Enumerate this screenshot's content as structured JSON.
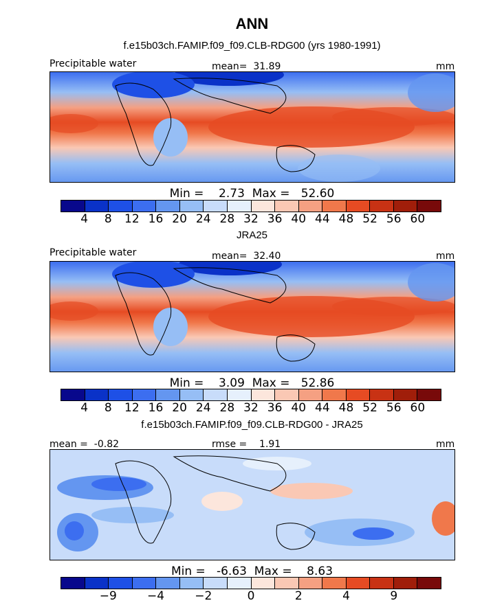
{
  "figure": {
    "title": "ANN"
  },
  "panels": [
    {
      "subtitle": "f.e15b03ch.FAMIP.f09_f09.CLB-RDG00 (yrs 1980-1991)",
      "left_label": "Precipitable water",
      "center_label": "mean=  31.89",
      "right_label": "mm",
      "minmax": "Min =    2.73  Max =   52.60",
      "ticks": [
        "4",
        "8",
        "12",
        "16",
        "20",
        "24",
        "28",
        "32",
        "36",
        "40",
        "44",
        "48",
        "52",
        "56",
        "60"
      ],
      "colors": [
        "#08088c",
        "#0a32c8",
        "#1e50e6",
        "#3c6ef0",
        "#6496f0",
        "#96bef5",
        "#c8dcfa",
        "#e6f0fc",
        "#fce6dc",
        "#fac8b4",
        "#f5a082",
        "#f0784b",
        "#e64b23",
        "#c83214",
        "#a01e0a",
        "#780a0a"
      ]
    },
    {
      "subtitle": "JRA25",
      "left_label": "Precipitable water",
      "center_label": "mean=  32.40",
      "right_label": "mm",
      "minmax": "Min =    3.09  Max =   52.86",
      "ticks": [
        "4",
        "8",
        "12",
        "16",
        "20",
        "24",
        "28",
        "32",
        "36",
        "40",
        "44",
        "48",
        "52",
        "56",
        "60"
      ],
      "colors": [
        "#08088c",
        "#0a32c8",
        "#1e50e6",
        "#3c6ef0",
        "#6496f0",
        "#96bef5",
        "#c8dcfa",
        "#e6f0fc",
        "#fce6dc",
        "#fac8b4",
        "#f5a082",
        "#f0784b",
        "#e64b23",
        "#c83214",
        "#a01e0a",
        "#780a0a"
      ]
    },
    {
      "subtitle": "f.e15b03ch.FAMIP.f09_f09.CLB-RDG00 - JRA25",
      "left_label": "mean =  -0.82",
      "center_label": "rmse =    1.91",
      "right_label": "mm",
      "minmax": "Min =   -6.63  Max =    8.63",
      "ticks": [
        "−9",
        "−4",
        "−2",
        "0",
        "2",
        "4",
        "9"
      ],
      "tick_slots": [
        2,
        4,
        6,
        8,
        10,
        12,
        14
      ],
      "colors": [
        "#08088c",
        "#0a32c8",
        "#1e50e6",
        "#3c6ef0",
        "#6496f0",
        "#96bef5",
        "#c8dcfa",
        "#e6f0fc",
        "#fce6dc",
        "#fac8b4",
        "#f5a082",
        "#f0784b",
        "#e64b23",
        "#c83214",
        "#a01e0a",
        "#780a0a"
      ]
    }
  ]
}
